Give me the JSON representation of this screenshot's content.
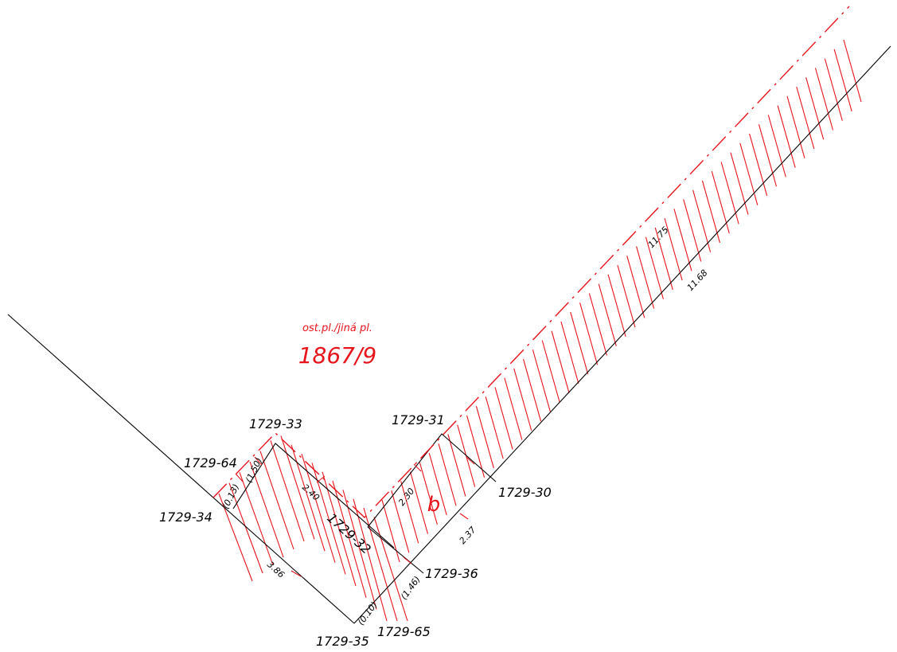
{
  "parcel": {
    "type_label": "ost.pl./jiná pl.",
    "number": "1867/9",
    "part_letter": "b"
  },
  "points": {
    "p1729_34": "1729-34",
    "p1729_64": "1729-64",
    "p1729_33": "1729-33",
    "p1729_32": "1729-32",
    "p1729_31": "1729-31",
    "p1729_30": "1729-30",
    "p1729_36": "1729-36",
    "p1729_65": "1729-65",
    "p1729_35": "1729-35"
  },
  "dimensions": {
    "d011_75": "11.75",
    "d011_68": "11.68",
    "d2_30": "2.30",
    "d2_37": "2.37",
    "d2_40": "2.40",
    "d3_86": "3.86",
    "d0_13": "(0.13)",
    "d1_50": "(1.50)",
    "d1_46": "(1.46)",
    "d0_10": "(0.10)"
  },
  "colors": {
    "boundary": "#000000",
    "new_boundary": "#e8141c",
    "hatch": "#e8141c"
  }
}
